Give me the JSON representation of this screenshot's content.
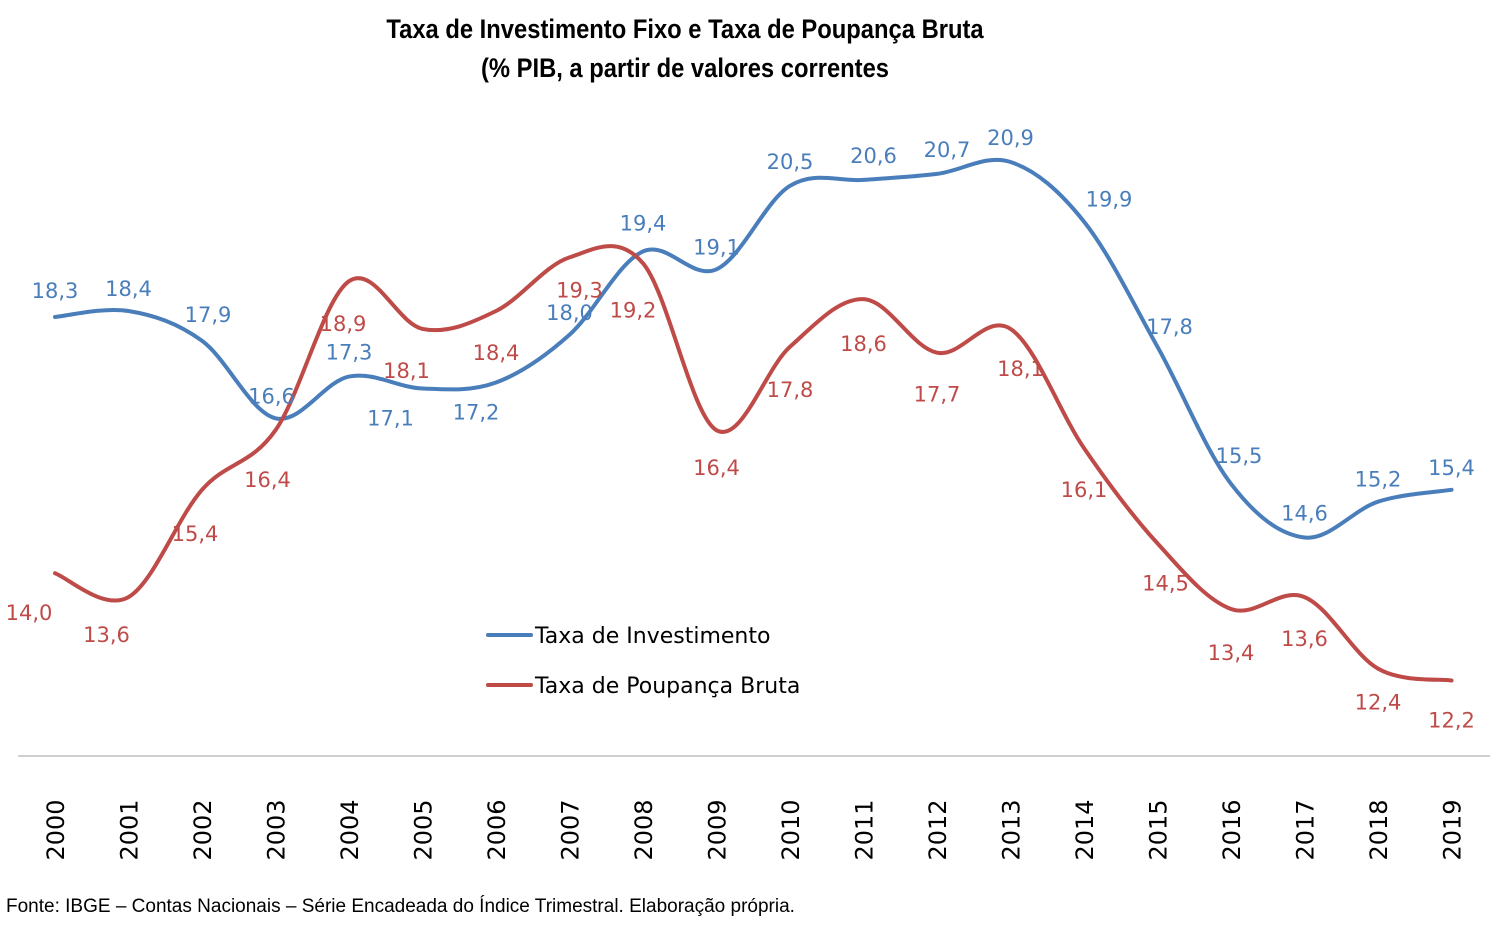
{
  "chart_data": {
    "type": "line",
    "title": "Taxa de Investimento Fixo e Taxa de Poupança Bruta",
    "subtitle": "(% PIB, a partir de valores correntes",
    "xlabel": "",
    "ylabel": "",
    "categories": [
      "2000",
      "2001",
      "2002",
      "2003",
      "2004",
      "2005",
      "2006",
      "2007",
      "2008",
      "2009",
      "2010",
      "2011",
      "2012",
      "2013",
      "2014",
      "2015",
      "2016",
      "2017",
      "2018",
      "2019"
    ],
    "series": [
      {
        "name": "Taxa de Investimento",
        "color": "#4a7ebb",
        "values": [
          18.3,
          18.4,
          17.9,
          16.6,
          17.3,
          17.1,
          17.2,
          18.0,
          19.4,
          19.1,
          20.5,
          20.6,
          20.7,
          20.9,
          19.9,
          17.8,
          15.5,
          14.6,
          15.2,
          15.4
        ],
        "labels": [
          "18,3",
          "18,4",
          "17,9",
          "16,6",
          "17,3",
          "17,1",
          "17,2",
          "18,0",
          "19,4",
          "19,1",
          "20,5",
          "20,6",
          "20,7",
          "20,9",
          "19,9",
          "17,8",
          "15,5",
          "14,6",
          "15,2",
          "15,4"
        ]
      },
      {
        "name": "Taxa de Poupança Bruta",
        "color": "#be4b48",
        "values": [
          14.0,
          13.6,
          15.4,
          16.4,
          18.9,
          18.1,
          18.4,
          19.3,
          19.2,
          16.4,
          17.8,
          18.6,
          17.7,
          18.1,
          16.1,
          14.5,
          13.4,
          13.6,
          12.4,
          12.2
        ],
        "labels": [
          "14,0",
          "13,6",
          "15,4",
          "16,4",
          "18,9",
          "18,1",
          "18,4",
          "19,3",
          "19,2",
          "16,4",
          "17,8",
          "18,6",
          "17,7",
          "18,1",
          "16,1",
          "14,5",
          "13,4",
          "13,6",
          "12,4",
          "12,2"
        ]
      }
    ],
    "ylim": [
      11.5,
      21.5
    ],
    "grid": false,
    "smooth": true,
    "legend_position": "center-bottom inside plot",
    "source": "Fonte: IBGE – Contas Nacionais – Série Encadeada do Índice Trimestral. Elaboração própria."
  }
}
